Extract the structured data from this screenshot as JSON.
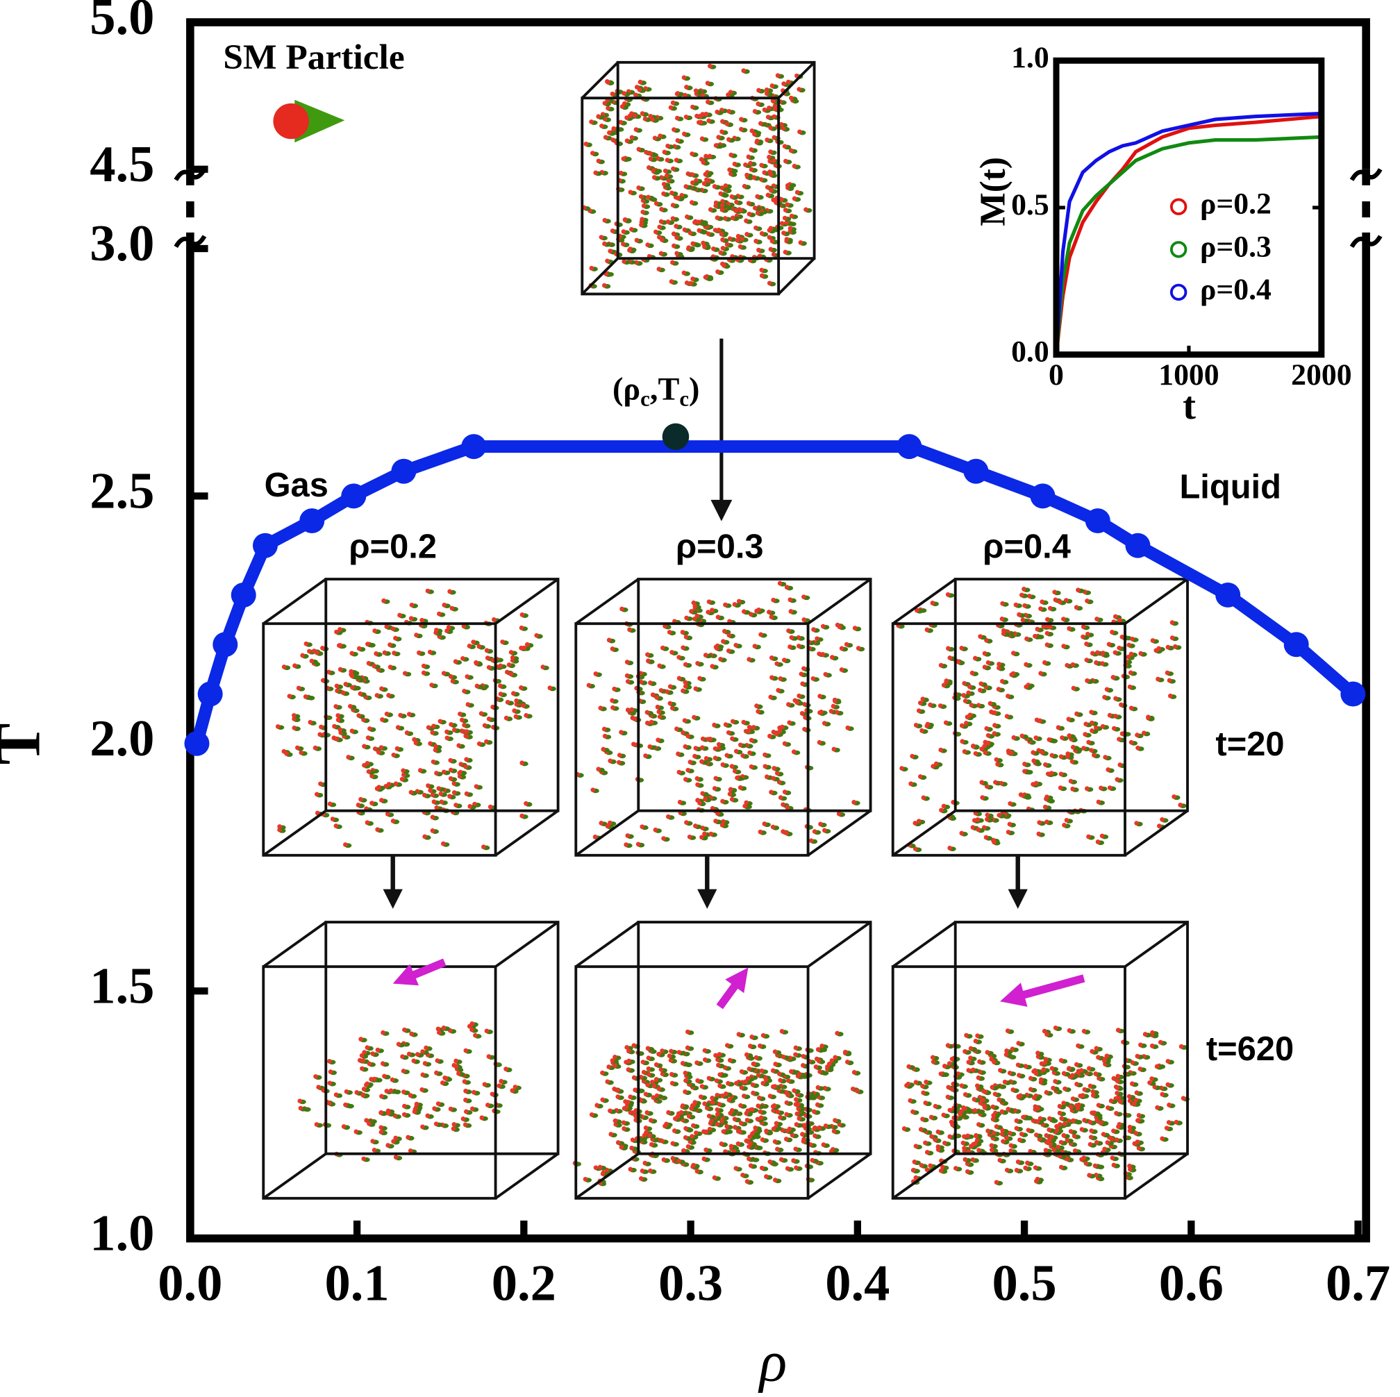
{
  "chart_data": [
    {
      "type": "line",
      "xlabel": "ρ",
      "ylabel": "T",
      "color": "#0a28e6",
      "x": [
        0.004,
        0.012,
        0.021,
        0.032,
        0.045,
        0.073,
        0.098,
        0.128,
        0.17,
        0.431,
        0.471,
        0.511,
        0.544,
        0.568,
        0.622,
        0.663,
        0.697
      ],
      "values": [
        2.0,
        2.1,
        2.2,
        2.3,
        2.4,
        2.45,
        2.5,
        2.55,
        2.6,
        2.6,
        2.55,
        2.5,
        2.45,
        2.4,
        2.3,
        2.2,
        2.1
      ],
      "critical_point": {
        "x": 0.291,
        "value": 2.62,
        "color": "#0b2a2a",
        "label_parts": [
          "(ρ",
          "c",
          ",T",
          "c",
          ")"
        ]
      },
      "xlim": [
        0,
        0.7
      ],
      "xticks": [
        {
          "value": 0,
          "label": "0.0"
        },
        0.1,
        0.2,
        0.3,
        0.4,
        0.5,
        0.6,
        0.7
      ],
      "ylim": [
        1,
        5
      ],
      "ybreak": [
        3,
        4.5
      ],
      "yticks": [
        {
          "value": 1,
          "label": "1.0"
        },
        1.5,
        {
          "value": 2,
          "label": "2.0"
        },
        2.5,
        {
          "value": 3,
          "label": "3.0"
        },
        4.5,
        {
          "value": 5,
          "label": "5.0"
        }
      ],
      "annotations": [
        "SM Particle",
        "Gas",
        "Liquid",
        "ρ=0.2",
        "ρ=0.3",
        "ρ=0.4",
        "t=20",
        "t=620"
      ]
    },
    {
      "type": "line",
      "xlabel": "t",
      "ylabel": "M(t)",
      "x": [
        0,
        50,
        100,
        200,
        300,
        400,
        500,
        600,
        800,
        1000,
        1200,
        1500,
        2000
      ],
      "series": [
        {
          "name": "ρ=0.2",
          "color": "#e01010",
          "values": [
            0,
            0.2,
            0.33,
            0.45,
            0.52,
            0.58,
            0.63,
            0.69,
            0.74,
            0.77,
            0.78,
            0.79,
            0.81
          ]
        },
        {
          "name": "ρ=0.3",
          "color": "#108a10",
          "values": [
            0,
            0.25,
            0.38,
            0.49,
            0.54,
            0.58,
            0.62,
            0.66,
            0.7,
            0.72,
            0.73,
            0.73,
            0.74
          ]
        },
        {
          "name": "ρ=0.4",
          "color": "#1010e6",
          "values": [
            0,
            0.35,
            0.52,
            0.62,
            0.66,
            0.69,
            0.71,
            0.72,
            0.76,
            0.78,
            0.8,
            0.81,
            0.82
          ]
        }
      ],
      "xlim": [
        0,
        2000
      ],
      "xticks": [
        0,
        1000,
        2000
      ],
      "ylim": [
        0,
        1
      ],
      "yticks": [
        {
          "value": 0,
          "label": "0.0"
        },
        0.5,
        {
          "value": 1,
          "label": "1.0"
        }
      ]
    }
  ]
}
